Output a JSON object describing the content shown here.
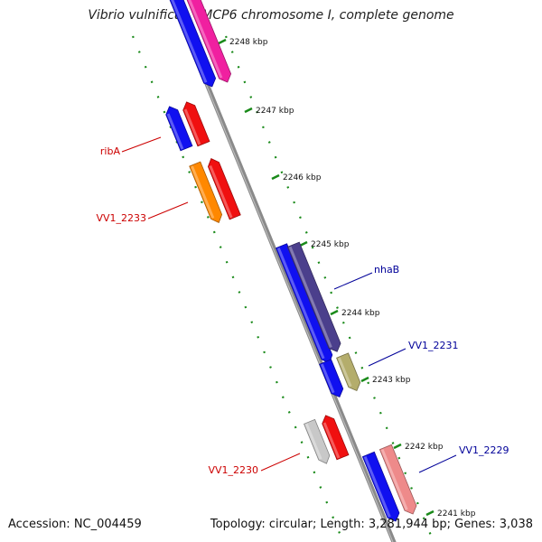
{
  "title": "Vibrio vulnificus CMCP6 chromosome I, complete genome",
  "footer": {
    "accession": "Accession: NC_004459",
    "summary": "Topology: circular; Length: 3,281,944 bp; Genes: 3,038"
  },
  "colors": {
    "background": "#ffffff",
    "backbone": "#808080",
    "tick": "#1a8a1a",
    "label_forward": "#000099",
    "label_reverse": "#cc0000"
  },
  "ticks": [
    "2248 kbp",
    "2247 kbp",
    "2246 kbp",
    "2245 kbp",
    "2244 kbp",
    "2243 kbp",
    "2242 kbp",
    "2241 kbp"
  ],
  "gene_labels": [
    {
      "text": "ribA",
      "strand": "reverse"
    },
    {
      "text": "VV1_2233",
      "strand": "reverse"
    },
    {
      "text": "nhaB",
      "strand": "forward"
    },
    {
      "text": "VV1_2231",
      "strand": "forward"
    },
    {
      "text": "VV1_2230",
      "strand": "reverse"
    },
    {
      "text": "VV1_2229",
      "strand": "forward"
    }
  ],
  "features": [
    {
      "type": "gene",
      "color": "#1010f0"
    },
    {
      "type": "cds",
      "color": "#f020a0"
    },
    {
      "type": "gene",
      "color": "#1010f0"
    },
    {
      "type": "cds",
      "color": "#f01010"
    },
    {
      "type": "gene",
      "color": "#ff8800"
    },
    {
      "type": "cds",
      "color": "#f01010"
    },
    {
      "type": "gene",
      "color": "#1010f0"
    },
    {
      "type": "cds",
      "color": "#4b3f8c"
    },
    {
      "type": "gene",
      "color": "#1010f0"
    },
    {
      "type": "cds",
      "color": "#b4ad6c"
    },
    {
      "type": "gene",
      "color": "#c8c8c8"
    },
    {
      "type": "cds",
      "color": "#f01010"
    },
    {
      "type": "gene",
      "color": "#1010f0"
    },
    {
      "type": "cds",
      "color": "#ee8a8a"
    }
  ]
}
